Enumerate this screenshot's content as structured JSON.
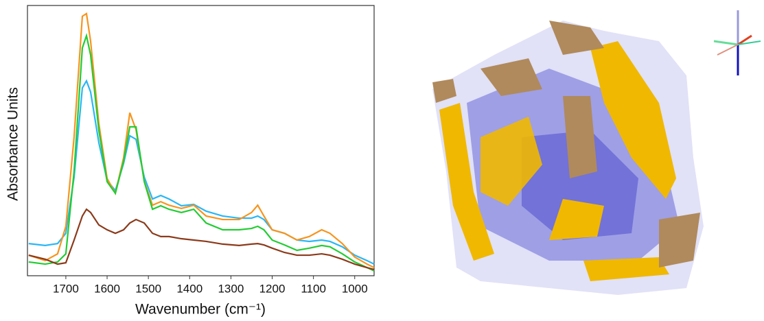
{
  "chart_data": {
    "type": "line",
    "xlabel": "Wavenumber (cm⁻¹)",
    "ylabel": "Absorbance Units",
    "x": [
      1790,
      1750,
      1720,
      1700,
      1680,
      1660,
      1650,
      1640,
      1620,
      1600,
      1580,
      1560,
      1545,
      1530,
      1510,
      1490,
      1470,
      1450,
      1420,
      1390,
      1360,
      1320,
      1280,
      1250,
      1235,
      1220,
      1200,
      1170,
      1140,
      1110,
      1080,
      1060,
      1030,
      1000,
      970,
      953
    ],
    "xlim": [
      1793,
      953
    ],
    "xticks": [
      1700,
      1600,
      1500,
      1400,
      1300,
      1200,
      1100,
      1000
    ],
    "ylim": [
      0,
      1
    ],
    "series": [
      {
        "color": "#29b6f6",
        "values": [
          0.119,
          0.112,
          0.119,
          0.157,
          0.365,
          0.695,
          0.721,
          0.68,
          0.492,
          0.353,
          0.315,
          0.416,
          0.518,
          0.505,
          0.365,
          0.284,
          0.297,
          0.284,
          0.259,
          0.264,
          0.239,
          0.221,
          0.213,
          0.213,
          0.221,
          0.208,
          0.17,
          0.157,
          0.132,
          0.127,
          0.132,
          0.127,
          0.107,
          0.076,
          0.056,
          0.043
        ]
      },
      {
        "color": "#f7941d",
        "values": [
          0.076,
          0.056,
          0.081,
          0.183,
          0.513,
          0.96,
          0.97,
          0.868,
          0.563,
          0.36,
          0.305,
          0.437,
          0.603,
          0.541,
          0.35,
          0.261,
          0.274,
          0.261,
          0.249,
          0.261,
          0.221,
          0.208,
          0.208,
          0.234,
          0.261,
          0.221,
          0.17,
          0.157,
          0.132,
          0.145,
          0.17,
          0.157,
          0.119,
          0.069,
          0.043,
          0.03
        ]
      },
      {
        "color": "#22cc33",
        "values": [
          0.051,
          0.043,
          0.051,
          0.081,
          0.386,
          0.843,
          0.888,
          0.817,
          0.538,
          0.348,
          0.305,
          0.424,
          0.551,
          0.551,
          0.348,
          0.246,
          0.259,
          0.246,
          0.234,
          0.246,
          0.195,
          0.17,
          0.17,
          0.175,
          0.183,
          0.17,
          0.132,
          0.114,
          0.094,
          0.102,
          0.112,
          0.107,
          0.081,
          0.051,
          0.03,
          0.018
        ]
      },
      {
        "color": "#8b3a1a",
        "values": [
          0.076,
          0.061,
          0.043,
          0.048,
          0.132,
          0.221,
          0.246,
          0.234,
          0.188,
          0.17,
          0.157,
          0.17,
          0.195,
          0.208,
          0.195,
          0.157,
          0.145,
          0.145,
          0.137,
          0.132,
          0.127,
          0.117,
          0.112,
          0.117,
          0.119,
          0.114,
          0.102,
          0.086,
          0.076,
          0.076,
          0.081,
          0.076,
          0.061,
          0.043,
          0.03,
          0.023
        ]
      }
    ]
  }
}
